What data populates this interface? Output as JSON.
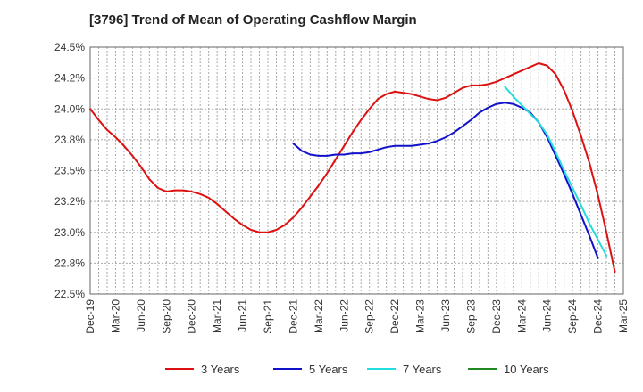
{
  "chart_data": {
    "type": "line",
    "title": "[3796]  Trend of Mean of Operating Cashflow Margin",
    "xlabel": "",
    "ylabel": "",
    "ylim": [
      22.5,
      24.5
    ],
    "y_ticks": [
      "24.5%",
      "24.2%",
      "24.0%",
      "23.8%",
      "23.5%",
      "23.2%",
      "23.0%",
      "22.8%",
      "22.5%"
    ],
    "y_tick_values": [
      24.5,
      24.25,
      24.0,
      23.75,
      23.5,
      23.25,
      23.0,
      22.75,
      22.5
    ],
    "x_ticks": [
      "Dec-19",
      "Mar-20",
      "Jun-20",
      "Sep-20",
      "Dec-20",
      "Mar-21",
      "Jun-21",
      "Sep-21",
      "Dec-21",
      "Mar-22",
      "Jun-22",
      "Sep-22",
      "Dec-22",
      "Mar-23",
      "Jun-23",
      "Sep-23",
      "Dec-23",
      "Mar-24",
      "Jun-24",
      "Sep-24",
      "Dec-24",
      "Mar-25"
    ],
    "grid": true,
    "legend_position": "bottom",
    "series": [
      {
        "name": "3 Years",
        "color": "#dd1111",
        "start_index": 0,
        "values": [
          24.0,
          23.91,
          23.83,
          23.77,
          23.7,
          23.62,
          23.53,
          23.43,
          23.36,
          23.33,
          23.34,
          23.34,
          23.33,
          23.31,
          23.28,
          23.23,
          23.17,
          23.11,
          23.06,
          23.02,
          23.0,
          23.0,
          23.02,
          23.06,
          23.12,
          23.2,
          23.29,
          23.38,
          23.48,
          23.59,
          23.7,
          23.81,
          23.91,
          24.0,
          24.08,
          24.12,
          24.14,
          24.13,
          24.12,
          24.1,
          24.08,
          24.07,
          24.09,
          24.13,
          24.17,
          24.19,
          24.19,
          24.2,
          24.22,
          24.25,
          24.28,
          24.31,
          24.34,
          24.37,
          24.35,
          24.28,
          24.15,
          23.98,
          23.78,
          23.56,
          23.3,
          23.0,
          22.68
        ]
      },
      {
        "name": "5 Years",
        "color": "#1111cc",
        "start_index": 24,
        "values": [
          23.72,
          23.66,
          23.63,
          23.62,
          23.62,
          23.63,
          23.63,
          23.64,
          23.64,
          23.65,
          23.67,
          23.69,
          23.7,
          23.7,
          23.7,
          23.71,
          23.72,
          23.74,
          23.77,
          23.81,
          23.86,
          23.91,
          23.97,
          24.01,
          24.04,
          24.05,
          24.04,
          24.01,
          23.97,
          23.89,
          23.77,
          23.62,
          23.47,
          23.31,
          23.14,
          22.97,
          22.79
        ]
      },
      {
        "name": "7 Years",
        "color": "#22dddd",
        "start_index": 49,
        "values": [
          24.18,
          24.1,
          24.03,
          23.96,
          23.89,
          23.79,
          23.65,
          23.5,
          23.36,
          23.22,
          23.07,
          22.94,
          22.81
        ]
      },
      {
        "name": "10 Years",
        "color": "#228822",
        "start_index": 0,
        "values": []
      }
    ]
  }
}
